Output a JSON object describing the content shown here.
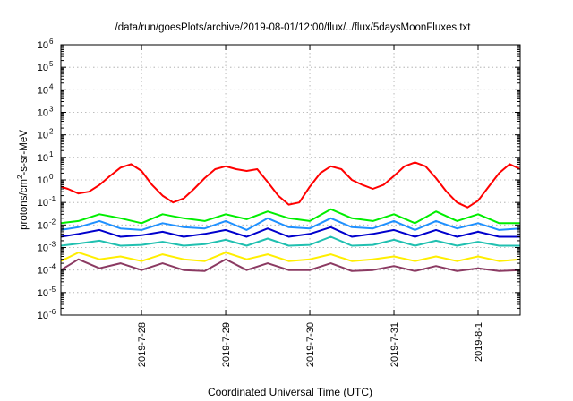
{
  "chart_data": {
    "type": "line",
    "title": "/data/run/goesPlots/archive/2019-08-01/12:00/flux/../flux/5daysMoonFluxes.txt",
    "xlabel": "Coordinated Universal Time (UTC)",
    "ylabel": "protons/cm²-s-sr-MeV",
    "ylabel_parts": [
      "protons/cm",
      "2",
      "-s-sr-MeV"
    ],
    "yscale": "log",
    "ylim": [
      1e-06,
      1000000.0
    ],
    "y_ticks": [
      {
        "value": 1e-06,
        "base": "10",
        "exp": "-6"
      },
      {
        "value": 1e-05,
        "base": "10",
        "exp": "-5"
      },
      {
        "value": 0.0001,
        "base": "10",
        "exp": "-4"
      },
      {
        "value": 0.001,
        "base": "10",
        "exp": "-3"
      },
      {
        "value": 0.01,
        "base": "10",
        "exp": "-2"
      },
      {
        "value": 0.1,
        "base": "10",
        "exp": "-1"
      },
      {
        "value": 1,
        "base": "10",
        "exp": "0"
      },
      {
        "value": 10.0,
        "base": "10",
        "exp": "1"
      },
      {
        "value": 100.0,
        "base": "10",
        "exp": "2"
      },
      {
        "value": 1000.0,
        "base": "10",
        "exp": "3"
      },
      {
        "value": 10000.0,
        "base": "10",
        "exp": "4"
      },
      {
        "value": 100000.0,
        "base": "10",
        "exp": "5"
      },
      {
        "value": 1000000.0,
        "base": "10",
        "exp": "6"
      }
    ],
    "xlim": [
      "2019-07-27 01:00",
      "2019-08-01 12:00"
    ],
    "x_ticks": [
      {
        "value": "2019-07-28 00:00",
        "label": "2019-7-28"
      },
      {
        "value": "2019-07-29 00:00",
        "label": "2019-7-29"
      },
      {
        "value": "2019-07-30 00:00",
        "label": "2019-7-30"
      },
      {
        "value": "2019-07-31 00:00",
        "label": "2019-7-31"
      },
      {
        "value": "2019-08-01 00:00",
        "label": "2019-8-1"
      }
    ],
    "grid": true,
    "series": [
      {
        "color": "#ff0000",
        "x": [
          "2019-07-27 01:00",
          "2019-07-27 03:00",
          "2019-07-27 06:00",
          "2019-07-27 09:00",
          "2019-07-27 12:00",
          "2019-07-27 15:00",
          "2019-07-27 18:00",
          "2019-07-27 21:00",
          "2019-07-28 00:00",
          "2019-07-28 03:00",
          "2019-07-28 06:00",
          "2019-07-28 09:00",
          "2019-07-28 12:00",
          "2019-07-28 15:00",
          "2019-07-28 18:00",
          "2019-07-28 21:00",
          "2019-07-29 00:00",
          "2019-07-29 03:00",
          "2019-07-29 06:00",
          "2019-07-29 09:00",
          "2019-07-29 12:00",
          "2019-07-29 15:00",
          "2019-07-29 18:00",
          "2019-07-29 21:00",
          "2019-07-30 00:00",
          "2019-07-30 03:00",
          "2019-07-30 06:00",
          "2019-07-30 09:00",
          "2019-07-30 12:00",
          "2019-07-30 15:00",
          "2019-07-30 18:00",
          "2019-07-30 21:00",
          "2019-07-31 00:00",
          "2019-07-31 03:00",
          "2019-07-31 06:00",
          "2019-07-31 09:00",
          "2019-07-31 12:00",
          "2019-07-31 15:00",
          "2019-07-31 18:00",
          "2019-07-31 21:00",
          "2019-08-01 00:00",
          "2019-08-01 03:00",
          "2019-08-01 06:00",
          "2019-08-01 09:00",
          "2019-08-01 12:00"
        ],
        "y": [
          0.5,
          0.4,
          0.25,
          0.3,
          0.6,
          1.5,
          3.5,
          5,
          2.5,
          0.6,
          0.2,
          0.1,
          0.15,
          0.4,
          1.2,
          3,
          4,
          3,
          2.5,
          3,
          0.8,
          0.2,
          0.08,
          0.1,
          0.5,
          2,
          4,
          3,
          1,
          0.6,
          0.4,
          0.6,
          1.5,
          4,
          6,
          4,
          1.2,
          0.3,
          0.1,
          0.06,
          0.12,
          0.5,
          2,
          5,
          3
        ]
      },
      {
        "color": "#00ee00",
        "x": [
          "2019-07-27 01:00",
          "2019-07-27 06:00",
          "2019-07-27 12:00",
          "2019-07-27 18:00",
          "2019-07-28 00:00",
          "2019-07-28 06:00",
          "2019-07-28 12:00",
          "2019-07-28 18:00",
          "2019-07-29 00:00",
          "2019-07-29 06:00",
          "2019-07-29 12:00",
          "2019-07-29 18:00",
          "2019-07-30 00:00",
          "2019-07-30 06:00",
          "2019-07-30 12:00",
          "2019-07-30 18:00",
          "2019-07-31 00:00",
          "2019-07-31 06:00",
          "2019-07-31 12:00",
          "2019-07-31 18:00",
          "2019-08-01 00:00",
          "2019-08-01 06:00",
          "2019-08-01 12:00"
        ],
        "y": [
          0.012,
          0.015,
          0.03,
          0.02,
          0.012,
          0.03,
          0.02,
          0.015,
          0.03,
          0.018,
          0.04,
          0.02,
          0.015,
          0.05,
          0.02,
          0.015,
          0.03,
          0.012,
          0.04,
          0.015,
          0.03,
          0.012,
          0.012
        ]
      },
      {
        "color": "#1e90ff",
        "x": [
          "2019-07-27 01:00",
          "2019-07-27 06:00",
          "2019-07-27 12:00",
          "2019-07-27 18:00",
          "2019-07-28 00:00",
          "2019-07-28 06:00",
          "2019-07-28 12:00",
          "2019-07-28 18:00",
          "2019-07-29 00:00",
          "2019-07-29 06:00",
          "2019-07-29 12:00",
          "2019-07-29 18:00",
          "2019-07-30 00:00",
          "2019-07-30 06:00",
          "2019-07-30 12:00",
          "2019-07-30 18:00",
          "2019-07-31 00:00",
          "2019-07-31 06:00",
          "2019-07-31 12:00",
          "2019-07-31 18:00",
          "2019-08-01 00:00",
          "2019-08-01 06:00",
          "2019-08-01 12:00"
        ],
        "y": [
          0.006,
          0.008,
          0.015,
          0.007,
          0.006,
          0.012,
          0.008,
          0.007,
          0.015,
          0.006,
          0.02,
          0.008,
          0.007,
          0.02,
          0.008,
          0.007,
          0.015,
          0.006,
          0.015,
          0.007,
          0.012,
          0.006,
          0.007
        ]
      },
      {
        "color": "#0000cd",
        "x": [
          "2019-07-27 01:00",
          "2019-07-27 06:00",
          "2019-07-27 12:00",
          "2019-07-27 18:00",
          "2019-07-28 00:00",
          "2019-07-28 06:00",
          "2019-07-28 12:00",
          "2019-07-28 18:00",
          "2019-07-29 00:00",
          "2019-07-29 06:00",
          "2019-07-29 12:00",
          "2019-07-29 18:00",
          "2019-07-30 00:00",
          "2019-07-30 06:00",
          "2019-07-30 12:00",
          "2019-07-30 18:00",
          "2019-07-31 00:00",
          "2019-07-31 06:00",
          "2019-07-31 12:00",
          "2019-07-31 18:00",
          "2019-08-01 00:00",
          "2019-08-01 06:00",
          "2019-08-01 12:00"
        ],
        "y": [
          0.003,
          0.004,
          0.006,
          0.003,
          0.0035,
          0.005,
          0.003,
          0.004,
          0.006,
          0.003,
          0.007,
          0.003,
          0.004,
          0.008,
          0.003,
          0.004,
          0.006,
          0.003,
          0.006,
          0.003,
          0.005,
          0.003,
          0.003
        ]
      },
      {
        "color": "#20c0b0",
        "x": [
          "2019-07-27 01:00",
          "2019-07-27 06:00",
          "2019-07-27 12:00",
          "2019-07-27 18:00",
          "2019-07-28 00:00",
          "2019-07-28 06:00",
          "2019-07-28 12:00",
          "2019-07-28 18:00",
          "2019-07-29 00:00",
          "2019-07-29 06:00",
          "2019-07-29 12:00",
          "2019-07-29 18:00",
          "2019-07-30 00:00",
          "2019-07-30 06:00",
          "2019-07-30 12:00",
          "2019-07-30 18:00",
          "2019-07-31 00:00",
          "2019-07-31 06:00",
          "2019-07-31 12:00",
          "2019-07-31 18:00",
          "2019-08-01 00:00",
          "2019-08-01 06:00",
          "2019-08-01 12:00"
        ],
        "y": [
          0.0012,
          0.0015,
          0.002,
          0.0012,
          0.0013,
          0.0018,
          0.0012,
          0.0014,
          0.0022,
          0.0012,
          0.0025,
          0.0012,
          0.0013,
          0.003,
          0.0012,
          0.0013,
          0.0022,
          0.0012,
          0.002,
          0.0012,
          0.0018,
          0.0012,
          0.0012
        ]
      },
      {
        "color": "#ffee00",
        "x": [
          "2019-07-27 01:00",
          "2019-07-27 06:00",
          "2019-07-27 12:00",
          "2019-07-27 18:00",
          "2019-07-28 00:00",
          "2019-07-28 06:00",
          "2019-07-28 12:00",
          "2019-07-28 18:00",
          "2019-07-29 00:00",
          "2019-07-29 06:00",
          "2019-07-29 12:00",
          "2019-07-29 18:00",
          "2019-07-30 00:00",
          "2019-07-30 06:00",
          "2019-07-30 12:00",
          "2019-07-30 18:00",
          "2019-07-31 00:00",
          "2019-07-31 06:00",
          "2019-07-31 12:00",
          "2019-07-31 18:00",
          "2019-08-01 00:00",
          "2019-08-01 06:00",
          "2019-08-01 12:00"
        ],
        "y": [
          0.00025,
          0.0006,
          0.0003,
          0.0004,
          0.00025,
          0.0005,
          0.0003,
          0.00025,
          0.0006,
          0.0003,
          0.0005,
          0.00025,
          0.0003,
          0.0005,
          0.00025,
          0.0003,
          0.0004,
          0.00025,
          0.0004,
          0.00025,
          0.0004,
          0.00025,
          0.0003
        ]
      },
      {
        "color": "#8b3a62",
        "x": [
          "2019-07-27 01:00",
          "2019-07-27 06:00",
          "2019-07-27 12:00",
          "2019-07-27 18:00",
          "2019-07-28 00:00",
          "2019-07-28 06:00",
          "2019-07-28 12:00",
          "2019-07-28 18:00",
          "2019-07-29 00:00",
          "2019-07-29 06:00",
          "2019-07-29 12:00",
          "2019-07-29 18:00",
          "2019-07-30 00:00",
          "2019-07-30 06:00",
          "2019-07-30 12:00",
          "2019-07-30 18:00",
          "2019-07-31 00:00",
          "2019-07-31 06:00",
          "2019-07-31 12:00",
          "2019-07-31 18:00",
          "2019-08-01 00:00",
          "2019-08-01 06:00",
          "2019-08-01 12:00"
        ],
        "y": [
          0.0001,
          0.0003,
          0.00012,
          0.0002,
          0.0001,
          0.0002,
          0.0001,
          9e-05,
          0.0003,
          0.0001,
          0.0002,
          0.0001,
          0.0001,
          0.0002,
          9e-05,
          0.0001,
          0.00015,
          9e-05,
          0.00015,
          9e-05,
          0.00012,
          9e-05,
          0.0001
        ]
      }
    ]
  }
}
